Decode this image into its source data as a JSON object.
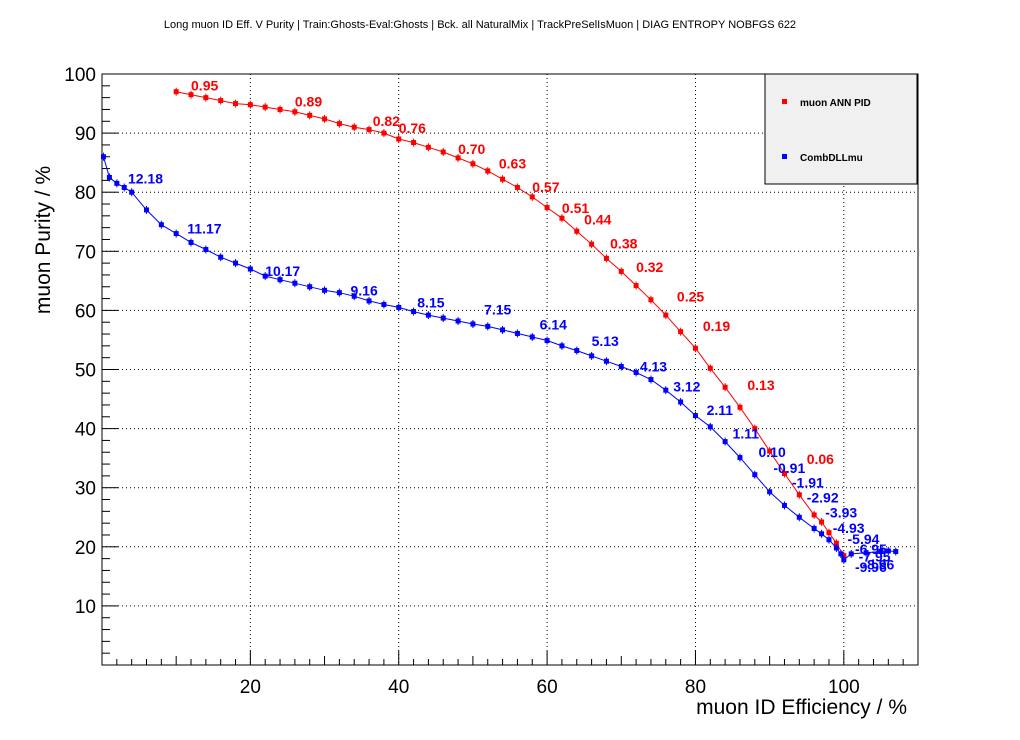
{
  "chart_data": {
    "type": "line",
    "title": "Long muon ID Eff. V Purity | Train:Ghosts-Eval:Ghosts | Bck. all NaturalMix | TrackPreSelIsMuon | DIAG ENTROPY NOBFGS 622",
    "xlabel": "muon ID Efficiency / %",
    "ylabel": "muon Purity / %",
    "xlim": [
      0,
      110
    ],
    "ylim": [
      0,
      100
    ],
    "x_ticks": [
      20,
      40,
      60,
      80,
      100
    ],
    "y_ticks": [
      10,
      20,
      30,
      40,
      50,
      60,
      70,
      80,
      90,
      100
    ],
    "grid": true,
    "legend_position": "top-right",
    "series": [
      {
        "name": "muon ANN PID",
        "color": "#ff0000",
        "points": [
          [
            10,
            97
          ],
          [
            12,
            96.5
          ],
          [
            14,
            96
          ],
          [
            16,
            95.5
          ],
          [
            18,
            95
          ],
          [
            20,
            94.8
          ],
          [
            22,
            94.4
          ],
          [
            24,
            94
          ],
          [
            26,
            93.6
          ],
          [
            28,
            93
          ],
          [
            30,
            92.4
          ],
          [
            32,
            91.6
          ],
          [
            34,
            91
          ],
          [
            36,
            90.6
          ],
          [
            38,
            90
          ],
          [
            40,
            89
          ],
          [
            42,
            88.4
          ],
          [
            44,
            87.6
          ],
          [
            46,
            86.8
          ],
          [
            48,
            85.8
          ],
          [
            50,
            84.8
          ],
          [
            52,
            83.6
          ],
          [
            54,
            82.2
          ],
          [
            56,
            80.8
          ],
          [
            58,
            79.2
          ],
          [
            60,
            77.4
          ],
          [
            62,
            75.6
          ],
          [
            64,
            73.4
          ],
          [
            66,
            71.2
          ],
          [
            68,
            68.8
          ],
          [
            70,
            66.6
          ],
          [
            72,
            64.2
          ],
          [
            74,
            61.8
          ],
          [
            76,
            59.2
          ],
          [
            78,
            56.4
          ],
          [
            80,
            53.6
          ],
          [
            82,
            50.2
          ],
          [
            84,
            47
          ],
          [
            86,
            43.6
          ],
          [
            88,
            40
          ],
          [
            90,
            36.2
          ],
          [
            92,
            32.4
          ],
          [
            94,
            28.8
          ],
          [
            96,
            25.4
          ],
          [
            97,
            24.2
          ],
          [
            98,
            22.4
          ],
          [
            99,
            20.6
          ],
          [
            100,
            18.5
          ]
        ],
        "labels": [
          {
            "text": "0.95",
            "x": 12,
            "y": 97.2
          },
          {
            "text": "0.89",
            "x": 26,
            "y": 94.5
          },
          {
            "text": "0.82",
            "x": 36.5,
            "y": 91.2
          },
          {
            "text": "0.76",
            "x": 40,
            "y": 90
          },
          {
            "text": "0.70",
            "x": 48,
            "y": 86.5
          },
          {
            "text": "0.63",
            "x": 53.5,
            "y": 84
          },
          {
            "text": "0.57",
            "x": 58,
            "y": 80
          },
          {
            "text": "0.51",
            "x": 62,
            "y": 76.5
          },
          {
            "text": "0.44",
            "x": 65,
            "y": 74.5
          },
          {
            "text": "0.38",
            "x": 68.5,
            "y": 70.5
          },
          {
            "text": "0.32",
            "x": 72,
            "y": 66.5
          },
          {
            "text": "0.25",
            "x": 77.5,
            "y": 61.5
          },
          {
            "text": "0.19",
            "x": 81,
            "y": 56.5
          },
          {
            "text": "0.13",
            "x": 87,
            "y": 46.5
          },
          {
            "text": "0.06",
            "x": 95,
            "y": 34
          }
        ]
      },
      {
        "name": "CombDLLmu",
        "color": "#0000ff",
        "points": [
          [
            0.2,
            86
          ],
          [
            1,
            82.5
          ],
          [
            2,
            81.5
          ],
          [
            3,
            80.8
          ],
          [
            4,
            80
          ],
          [
            6,
            77
          ],
          [
            8,
            74.5
          ],
          [
            10,
            73
          ],
          [
            12,
            71.5
          ],
          [
            14,
            70.3
          ],
          [
            16,
            69
          ],
          [
            18,
            68
          ],
          [
            20,
            67
          ],
          [
            22,
            65.8
          ],
          [
            24,
            65.2
          ],
          [
            26,
            64.6
          ],
          [
            28,
            64
          ],
          [
            30,
            63.4
          ],
          [
            32,
            63
          ],
          [
            34,
            62.4
          ],
          [
            36,
            61.6
          ],
          [
            38,
            61
          ],
          [
            40,
            60.5
          ],
          [
            42,
            59.8
          ],
          [
            44,
            59.2
          ],
          [
            46,
            58.7
          ],
          [
            48,
            58.2
          ],
          [
            50,
            57.7
          ],
          [
            52,
            57.3
          ],
          [
            54,
            56.7
          ],
          [
            56,
            56.1
          ],
          [
            58,
            55.5
          ],
          [
            60,
            54.9
          ],
          [
            62,
            54
          ],
          [
            64,
            53.2
          ],
          [
            66,
            52.3
          ],
          [
            68,
            51.4
          ],
          [
            70,
            50.5
          ],
          [
            72,
            49.5
          ],
          [
            74,
            48.3
          ],
          [
            76,
            46.5
          ],
          [
            78,
            44.5
          ],
          [
            80,
            42.2
          ],
          [
            82,
            40.3
          ],
          [
            84,
            37.8
          ],
          [
            86,
            35.1
          ],
          [
            88,
            32.2
          ],
          [
            90,
            29.3
          ],
          [
            92,
            27
          ],
          [
            94,
            25
          ],
          [
            96,
            23.1
          ],
          [
            97,
            22.2
          ],
          [
            98,
            21.2
          ],
          [
            99,
            19.8
          ],
          [
            99.6,
            18.8
          ],
          [
            100,
            17.8
          ],
          [
            101,
            18.8
          ],
          [
            103,
            19
          ],
          [
            105,
            19.2
          ],
          [
            106,
            19.3
          ],
          [
            107,
            19.2
          ]
        ],
        "labels": [
          {
            "text": "12.18",
            "x": 3.5,
            "y": 81.5
          },
          {
            "text": "11.17",
            "x": 11.5,
            "y": 73
          },
          {
            "text": "10.17",
            "x": 22,
            "y": 65.8
          },
          {
            "text": "9.16",
            "x": 33.5,
            "y": 62.5
          },
          {
            "text": "8.15",
            "x": 42.5,
            "y": 60.5
          },
          {
            "text": "7.15",
            "x": 51.5,
            "y": 59.3
          },
          {
            "text": "6.14",
            "x": 59,
            "y": 56.8
          },
          {
            "text": "5.13",
            "x": 66,
            "y": 54
          },
          {
            "text": "4.13",
            "x": 72.5,
            "y": 49.7
          },
          {
            "text": "3.12",
            "x": 77,
            "y": 46.3
          },
          {
            "text": "2.11",
            "x": 81.5,
            "y": 42.3
          },
          {
            "text": "1.11",
            "x": 85,
            "y": 38.3
          },
          {
            "text": "0.10",
            "x": 88.5,
            "y": 35.2
          },
          {
            "text": "-0.91",
            "x": 90.5,
            "y": 32.5
          },
          {
            "text": "-1.91",
            "x": 93,
            "y": 30
          },
          {
            "text": "-2.92",
            "x": 95,
            "y": 27.5
          },
          {
            "text": "-3.93",
            "x": 97.5,
            "y": 25
          },
          {
            "text": "-4.93",
            "x": 98.5,
            "y": 22.3
          },
          {
            "text": "-5.94",
            "x": 100.5,
            "y": 20.5
          },
          {
            "text": "-6.95",
            "x": 101.5,
            "y": 18.8
          },
          {
            "text": "-7.95",
            "x": 102,
            "y": 17.5
          },
          {
            "text": "-8.96",
            "x": 102.5,
            "y": 16.2
          },
          {
            "text": "-9.96",
            "x": 101.5,
            "y": 15.7
          }
        ]
      }
    ]
  }
}
